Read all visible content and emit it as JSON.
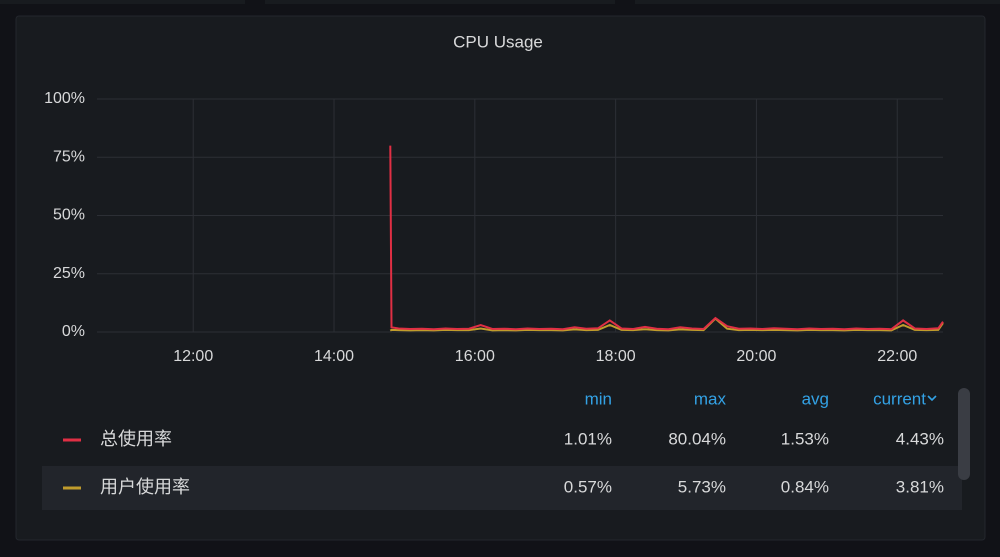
{
  "chart_data": {
    "type": "line",
    "title": "CPU Usage",
    "x": [
      888,
      889,
      895,
      905,
      915,
      925,
      935,
      945,
      955,
      965,
      975,
      985,
      995,
      1005,
      1015,
      1025,
      1035,
      1045,
      1055,
      1065,
      1075,
      1085,
      1095,
      1105,
      1115,
      1125,
      1135,
      1145,
      1155,
      1165,
      1175,
      1185,
      1195,
      1205,
      1215,
      1225,
      1235,
      1245,
      1255,
      1265,
      1275,
      1285,
      1295,
      1305,
      1315,
      1325,
      1335,
      1345,
      1355,
      1359
    ],
    "xlim": [
      638,
      1359
    ],
    "xticks": [
      {
        "value": 720,
        "label": "12:00"
      },
      {
        "value": 840,
        "label": "14:00"
      },
      {
        "value": 960,
        "label": "16:00"
      },
      {
        "value": 1080,
        "label": "18:00"
      },
      {
        "value": 1200,
        "label": "20:00"
      },
      {
        "value": 1320,
        "label": "22:00"
      }
    ],
    "ylim": [
      0,
      100
    ],
    "yticks": [
      {
        "value": 0,
        "label": "0%"
      },
      {
        "value": 25,
        "label": "25%"
      },
      {
        "value": 50,
        "label": "50%"
      },
      {
        "value": 75,
        "label": "75%"
      },
      {
        "value": 100,
        "label": "100%"
      }
    ],
    "grid": true,
    "series": [
      {
        "name": "总使用率",
        "color": "#e02f44",
        "values": [
          80,
          2,
          1.5,
          1.3,
          1.4,
          1.2,
          1.5,
          1.3,
          1.4,
          3,
          1.3,
          1.4,
          1.2,
          1.5,
          1.3,
          1.4,
          1.2,
          2,
          1.4,
          1.6,
          5,
          1.5,
          1.3,
          2.2,
          1.4,
          1.2,
          2,
          1.5,
          1.3,
          6,
          2.5,
          1.4,
          1.5,
          1.3,
          1.6,
          1.4,
          1.2,
          1.5,
          1.3,
          1.4,
          1.2,
          1.5,
          1.3,
          1.4,
          1.2,
          5,
          1.5,
          1.3,
          1.6,
          4.43
        ]
      },
      {
        "name": "用户使用率",
        "color": "#c09c2c",
        "values": [
          0.57,
          0.9,
          0.8,
          0.7,
          0.8,
          0.7,
          0.9,
          0.8,
          0.8,
          1.5,
          0.7,
          0.8,
          0.7,
          0.9,
          0.8,
          0.8,
          0.7,
          1.1,
          0.8,
          0.9,
          3,
          0.9,
          0.8,
          1.2,
          0.8,
          0.7,
          1.1,
          0.9,
          0.8,
          5.73,
          1.4,
          0.8,
          0.9,
          0.8,
          0.9,
          0.8,
          0.7,
          0.9,
          0.8,
          0.8,
          0.7,
          0.9,
          0.8,
          0.8,
          0.7,
          3,
          0.9,
          0.8,
          0.9,
          3.81
        ]
      }
    ],
    "legend_stats": {
      "columns": [
        "min",
        "max",
        "avg",
        "current"
      ],
      "rows": [
        [
          "1.01%",
          "80.04%",
          "1.53%",
          "4.43%"
        ],
        [
          "0.57%",
          "5.73%",
          "0.84%",
          "3.81%"
        ]
      ]
    }
  }
}
